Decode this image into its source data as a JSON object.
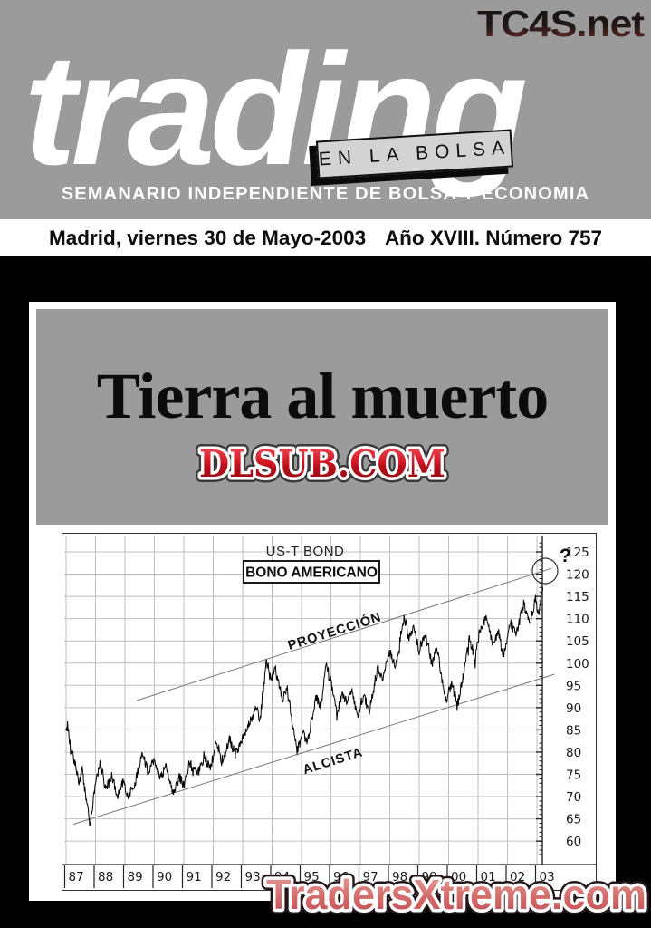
{
  "masthead": {
    "site": "TC4S.net",
    "logo": "trading",
    "tagline_box": "EN LA BOLSA",
    "subtitle": "SEMANARIO INDEPENDIENTE DE BOLSA Y ECONOMIA"
  },
  "dateline": {
    "left": "Madrid, viernes 30 de Mayo-2003",
    "right": "Año XVIII. Número 757"
  },
  "cover": {
    "headline": "Tierra al muerto",
    "watermark": "DLSUB.COM",
    "footer_watermark": "TradersXtreme.com"
  },
  "colors": {
    "masthead_gray": "#9b9b9b",
    "page_black": "#000000",
    "dlsub_red": "#c8141f",
    "traders_red": "#d4696b",
    "grid_gray": "#bfbfbf"
  },
  "chart_data": {
    "type": "line",
    "title": "US-T BOND",
    "label_box": "BONO AMERICANO",
    "annotations": {
      "upper_channel": "PROYECCIÓN",
      "lower_channel": "ALCISTA",
      "question": "?"
    },
    "x_ticks": [
      "87",
      "88",
      "89",
      "90",
      "91",
      "92",
      "93",
      "94",
      "95",
      "96",
      "97",
      "98",
      "99",
      "00",
      "01",
      "02",
      "03"
    ],
    "y_ticks": [
      125,
      120,
      115,
      110,
      105,
      100,
      95,
      90,
      85,
      80,
      75,
      70,
      65,
      60
    ],
    "xlim": [
      1987,
      2003.5
    ],
    "ylim": [
      57,
      127
    ],
    "grid": true,
    "legend": "none",
    "series": [
      {
        "name": "US-T Bond (Bono Americano)",
        "points": [
          [
            0,
            84.5
          ],
          [
            0.05,
            86
          ],
          [
            0.15,
            81
          ],
          [
            0.3,
            77.5
          ],
          [
            0.45,
            73
          ],
          [
            0.55,
            76
          ],
          [
            0.8,
            64
          ],
          [
            1.0,
            72.5
          ],
          [
            1.15,
            77
          ],
          [
            1.35,
            71.5
          ],
          [
            1.55,
            74.5
          ],
          [
            1.75,
            70.5
          ],
          [
            1.95,
            73.5
          ],
          [
            2.1,
            69.5
          ],
          [
            2.35,
            73.5
          ],
          [
            2.6,
            79.5
          ],
          [
            2.8,
            75.5
          ],
          [
            3.0,
            78
          ],
          [
            3.2,
            74.5
          ],
          [
            3.4,
            77
          ],
          [
            3.65,
            70.5
          ],
          [
            3.85,
            74.5
          ],
          [
            4.0,
            72.5
          ],
          [
            4.2,
            77.5
          ],
          [
            4.45,
            75
          ],
          [
            4.7,
            79
          ],
          [
            4.9,
            76.5
          ],
          [
            5.1,
            82
          ],
          [
            5.3,
            77.5
          ],
          [
            5.55,
            83
          ],
          [
            5.75,
            79.5
          ],
          [
            6.0,
            83
          ],
          [
            6.25,
            87
          ],
          [
            6.45,
            90
          ],
          [
            6.6,
            87.5
          ],
          [
            6.8,
            101
          ],
          [
            6.95,
            96
          ],
          [
            7.1,
            99
          ],
          [
            7.35,
            92
          ],
          [
            7.5,
            94.5
          ],
          [
            7.85,
            80.5
          ],
          [
            8.05,
            84
          ],
          [
            8.2,
            82
          ],
          [
            8.5,
            92.5
          ],
          [
            8.65,
            90
          ],
          [
            8.85,
            100
          ],
          [
            9.05,
            94.5
          ],
          [
            9.2,
            88.5
          ],
          [
            9.4,
            93.5
          ],
          [
            9.55,
            90.5
          ],
          [
            9.7,
            94
          ],
          [
            9.9,
            88.5
          ],
          [
            10.1,
            92.5
          ],
          [
            10.3,
            89.5
          ],
          [
            10.6,
            99
          ],
          [
            10.75,
            96.5
          ],
          [
            11.0,
            102.5
          ],
          [
            11.2,
            99.5
          ],
          [
            11.5,
            110.5
          ],
          [
            11.65,
            105.5
          ],
          [
            11.8,
            108
          ],
          [
            12.0,
            103
          ],
          [
            12.2,
            106.5
          ],
          [
            12.45,
            100
          ],
          [
            12.6,
            103.5
          ],
          [
            12.9,
            91.5
          ],
          [
            13.1,
            95.5
          ],
          [
            13.3,
            90.5
          ],
          [
            13.55,
            99
          ],
          [
            13.7,
            105.5
          ],
          [
            13.9,
            101
          ],
          [
            14.1,
            108
          ],
          [
            14.3,
            110.5
          ],
          [
            14.5,
            103.5
          ],
          [
            14.7,
            107
          ],
          [
            14.85,
            101.5
          ],
          [
            15.1,
            109
          ],
          [
            15.3,
            106.5
          ],
          [
            15.55,
            113.5
          ],
          [
            15.75,
            108.5
          ],
          [
            15.95,
            114.5
          ],
          [
            16.05,
            111.5
          ],
          [
            16.2,
            116
          ],
          [
            16.3,
            118
          ],
          [
            16.42,
            121.5
          ]
        ]
      }
    ],
    "channel_lines": {
      "alcista": [
        [
          0.25,
          63.8
        ],
        [
          16.6,
          97.5
        ]
      ],
      "proyeccion": [
        [
          2.4,
          91.6
        ],
        [
          16.5,
          121.3
        ]
      ]
    }
  }
}
